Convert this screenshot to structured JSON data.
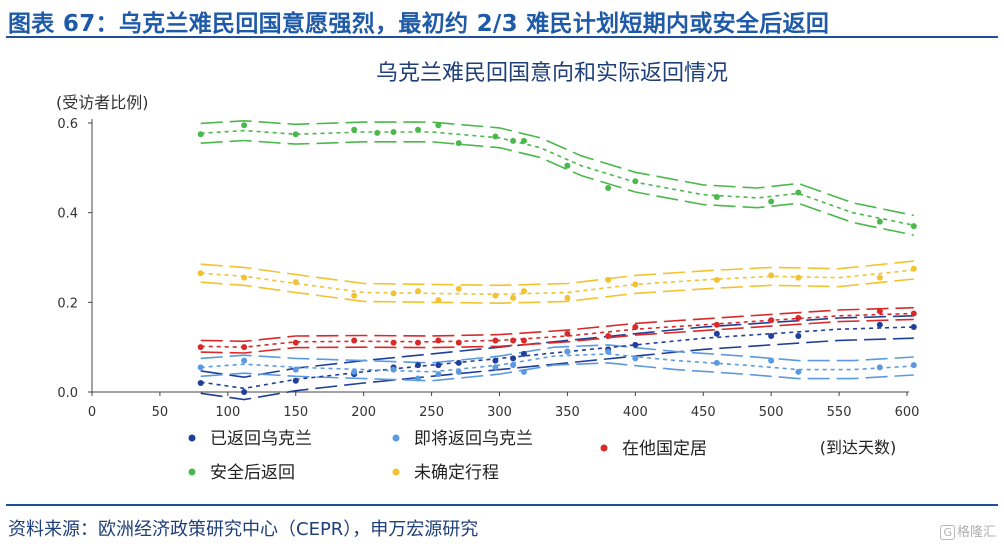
{
  "figure_title": "图表 67：乌克兰难民回国意愿强烈，最初约 2/3 难民计划短期内或安全后返回",
  "source": "资料来源：欧洲经济政策研究中心（CEPR），申万宏源研究",
  "watermark": "格隆汇",
  "watermark_icon": "g-logo-icon",
  "chart_data": {
    "type": "scatter",
    "title": "乌克兰难民回国意向和实际返回情况",
    "ylabel": "(受访者比例)",
    "xlabel": "(到达天数)",
    "xlim": [
      0,
      600
    ],
    "ylim": [
      0,
      0.6
    ],
    "xticks": [
      0,
      50,
      100,
      150,
      200,
      250,
      300,
      350,
      400,
      450,
      500,
      550,
      600
    ],
    "xtick_labels": [
      "0",
      "50",
      "100",
      "150",
      "200",
      "250",
      "300",
      "350",
      "400",
      "450",
      "500",
      "550",
      "600"
    ],
    "yticks": [
      0,
      0.2,
      0.4,
      0.6
    ],
    "ytick_labels": [
      "0.0",
      "0.2",
      "0.4",
      "0.6"
    ],
    "grid": false,
    "legend_position": "bottom",
    "series": [
      {
        "name": "已返回乌克兰",
        "color": "#1f3f9a",
        "x": [
          80,
          112,
          150,
          193,
          222,
          240,
          255,
          270,
          297,
          310,
          318,
          350,
          380,
          400,
          460,
          500,
          520,
          580,
          605
        ],
        "y": [
          0.02,
          0.0,
          0.025,
          0.04,
          0.055,
          0.06,
          0.06,
          0.065,
          0.07,
          0.075,
          0.085,
          0.09,
          0.095,
          0.105,
          0.13,
          0.125,
          0.125,
          0.15,
          0.145
        ],
        "fit": [
          [
            80,
            0.022
          ],
          [
            112,
            0.008
          ],
          [
            150,
            0.028
          ],
          [
            200,
            0.045
          ],
          [
            250,
            0.06
          ],
          [
            300,
            0.075
          ],
          [
            350,
            0.09
          ],
          [
            400,
            0.105
          ],
          [
            450,
            0.12
          ],
          [
            500,
            0.13
          ],
          [
            550,
            0.14
          ],
          [
            605,
            0.145
          ]
        ],
        "band": 0.025
      },
      {
        "name": "即将返回乌克兰",
        "color": "#5b9ae0",
        "x": [
          80,
          112,
          150,
          193,
          222,
          240,
          255,
          270,
          297,
          310,
          318,
          350,
          380,
          400,
          460,
          500,
          520,
          580,
          605
        ],
        "y": [
          0.055,
          0.07,
          0.05,
          0.045,
          0.05,
          0.03,
          0.04,
          0.045,
          0.055,
          0.06,
          0.045,
          0.09,
          0.09,
          0.075,
          0.065,
          0.07,
          0.045,
          0.055,
          0.06
        ],
        "fit": [
          [
            80,
            0.055
          ],
          [
            112,
            0.062
          ],
          [
            150,
            0.055
          ],
          [
            200,
            0.05
          ],
          [
            250,
            0.045
          ],
          [
            300,
            0.06
          ],
          [
            340,
            0.08
          ],
          [
            380,
            0.085
          ],
          [
            430,
            0.07
          ],
          [
            480,
            0.06
          ],
          [
            520,
            0.05
          ],
          [
            560,
            0.05
          ],
          [
            605,
            0.058
          ]
        ],
        "band": 0.02
      },
      {
        "name": "在他国定居",
        "color": "#d82a2a",
        "x": [
          80,
          112,
          150,
          193,
          222,
          240,
          255,
          270,
          297,
          310,
          318,
          350,
          380,
          400,
          460,
          500,
          520,
          580,
          605
        ],
        "y": [
          0.1,
          0.1,
          0.11,
          0.115,
          0.11,
          0.11,
          0.115,
          0.11,
          0.115,
          0.115,
          0.115,
          0.13,
          0.125,
          0.145,
          0.15,
          0.16,
          0.165,
          0.18,
          0.175
        ],
        "fit": [
          [
            80,
            0.102
          ],
          [
            112,
            0.1
          ],
          [
            150,
            0.112
          ],
          [
            200,
            0.113
          ],
          [
            250,
            0.112
          ],
          [
            300,
            0.115
          ],
          [
            350,
            0.125
          ],
          [
            400,
            0.14
          ],
          [
            450,
            0.15
          ],
          [
            500,
            0.16
          ],
          [
            550,
            0.17
          ],
          [
            605,
            0.175
          ]
        ],
        "band": 0.013
      },
      {
        "name": "安全后返回",
        "color": "#4cb84c",
        "x": [
          80,
          112,
          150,
          193,
          210,
          222,
          240,
          255,
          270,
          297,
          310,
          318,
          350,
          380,
          400,
          460,
          500,
          520,
          580,
          605
        ],
        "y": [
          0.575,
          0.595,
          0.575,
          0.585,
          0.578,
          0.58,
          0.585,
          0.595,
          0.555,
          0.57,
          0.56,
          0.56,
          0.505,
          0.455,
          0.47,
          0.435,
          0.425,
          0.445,
          0.38,
          0.37
        ],
        "fit": [
          [
            80,
            0.577
          ],
          [
            112,
            0.583
          ],
          [
            150,
            0.575
          ],
          [
            200,
            0.58
          ],
          [
            250,
            0.58
          ],
          [
            300,
            0.567
          ],
          [
            330,
            0.545
          ],
          [
            360,
            0.505
          ],
          [
            400,
            0.468
          ],
          [
            450,
            0.44
          ],
          [
            490,
            0.433
          ],
          [
            520,
            0.443
          ],
          [
            560,
            0.4
          ],
          [
            605,
            0.372
          ]
        ],
        "band": 0.022
      },
      {
        "name": "未确定行程",
        "color": "#f2c230",
        "x": [
          80,
          112,
          150,
          193,
          222,
          240,
          255,
          270,
          297,
          310,
          318,
          350,
          380,
          400,
          460,
          500,
          520,
          580,
          605
        ],
        "y": [
          0.265,
          0.255,
          0.245,
          0.215,
          0.22,
          0.225,
          0.205,
          0.23,
          0.215,
          0.21,
          0.225,
          0.21,
          0.25,
          0.24,
          0.25,
          0.26,
          0.255,
          0.255,
          0.275
        ],
        "fit": [
          [
            80,
            0.265
          ],
          [
            112,
            0.258
          ],
          [
            150,
            0.242
          ],
          [
            200,
            0.222
          ],
          [
            250,
            0.22
          ],
          [
            300,
            0.218
          ],
          [
            350,
            0.222
          ],
          [
            400,
            0.24
          ],
          [
            450,
            0.25
          ],
          [
            500,
            0.258
          ],
          [
            550,
            0.255
          ],
          [
            605,
            0.272
          ]
        ],
        "band": 0.02
      }
    ]
  }
}
